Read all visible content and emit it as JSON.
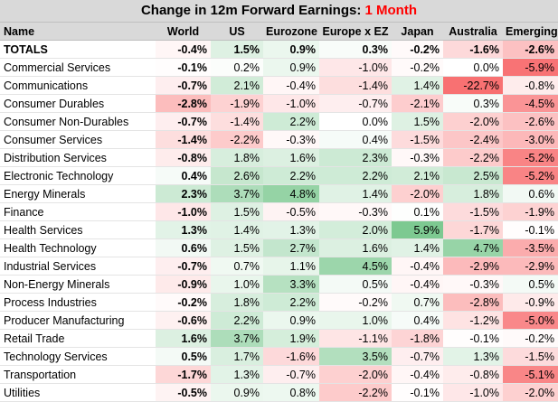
{
  "title": {
    "main": "Change in 12m Forward Earnings: ",
    "highlight": "1 Month"
  },
  "colors": {
    "positive": "#63be7b",
    "negative": "#f8696b",
    "neutral": "#ffffff",
    "highlight_text": "#ff0000"
  },
  "chart_data": {
    "type": "table",
    "columns": [
      "Name",
      "World",
      "US",
      "Eurozone",
      "Europe x EZ",
      "Japan",
      "Australia",
      "Emerging"
    ],
    "rows": [
      {
        "name": "TOTALS",
        "values": [
          -0.4,
          1.5,
          0.9,
          0.3,
          -0.2,
          -1.6,
          -2.6
        ]
      },
      {
        "name": "Commercial Services",
        "values": [
          -0.1,
          0.2,
          0.9,
          -1.0,
          -0.2,
          0.0,
          -5.9
        ]
      },
      {
        "name": "Communications",
        "values": [
          -0.7,
          2.1,
          -0.4,
          -1.4,
          1.4,
          -22.7,
          -0.8
        ]
      },
      {
        "name": "Consumer Durables",
        "values": [
          -2.8,
          -1.9,
          -1.0,
          -0.7,
          -2.1,
          0.3,
          -4.5
        ]
      },
      {
        "name": "Consumer Non-Durables",
        "values": [
          -0.7,
          -1.4,
          2.2,
          0.0,
          1.5,
          -2.0,
          -2.6
        ]
      },
      {
        "name": "Consumer Services",
        "values": [
          -1.4,
          -2.2,
          -0.3,
          0.4,
          -1.5,
          -2.4,
          -3.0
        ]
      },
      {
        "name": "Distribution Services",
        "values": [
          -0.8,
          1.8,
          1.6,
          2.3,
          -0.3,
          -2.2,
          -5.2
        ]
      },
      {
        "name": "Electronic Technology",
        "values": [
          0.4,
          2.6,
          2.2,
          2.2,
          2.1,
          2.5,
          -5.2
        ]
      },
      {
        "name": "Energy Minerals",
        "values": [
          2.3,
          3.7,
          4.8,
          1.4,
          -2.0,
          1.8,
          0.6
        ]
      },
      {
        "name": "Finance",
        "values": [
          -1.0,
          1.5,
          -0.5,
          -0.3,
          0.1,
          -1.5,
          -1.9
        ]
      },
      {
        "name": "Health Services",
        "values": [
          1.3,
          1.4,
          1.3,
          2.0,
          5.9,
          -1.7,
          -0.1
        ]
      },
      {
        "name": "Health Technology",
        "values": [
          0.6,
          1.5,
          2.7,
          1.6,
          1.4,
          4.7,
          -3.5
        ]
      },
      {
        "name": "Industrial Services",
        "values": [
          -0.7,
          0.7,
          1.1,
          4.5,
          -0.4,
          -2.9,
          -2.9
        ]
      },
      {
        "name": "Non-Energy Minerals",
        "values": [
          -0.9,
          1.0,
          3.3,
          0.5,
          -0.4,
          -0.3,
          0.5
        ]
      },
      {
        "name": "Process Industries",
        "values": [
          -0.2,
          1.8,
          2.2,
          -0.2,
          0.7,
          -2.8,
          -0.9
        ]
      },
      {
        "name": "Producer Manufacturing",
        "values": [
          -0.6,
          2.2,
          0.9,
          1.0,
          0.4,
          -1.2,
          -5.0
        ]
      },
      {
        "name": "Retail Trade",
        "values": [
          1.6,
          3.7,
          1.9,
          -1.1,
          -1.8,
          -0.1,
          -0.2
        ]
      },
      {
        "name": "Technology Services",
        "values": [
          0.5,
          1.7,
          -1.6,
          3.5,
          -0.7,
          1.3,
          -1.5
        ]
      },
      {
        "name": "Transportation",
        "values": [
          -1.7,
          1.3,
          -0.7,
          -2.0,
          -0.4,
          -0.8,
          -5.1
        ]
      },
      {
        "name": "Utilities",
        "values": [
          -0.5,
          0.9,
          0.8,
          -2.2,
          -0.1,
          -1.0,
          -2.0
        ]
      }
    ]
  }
}
